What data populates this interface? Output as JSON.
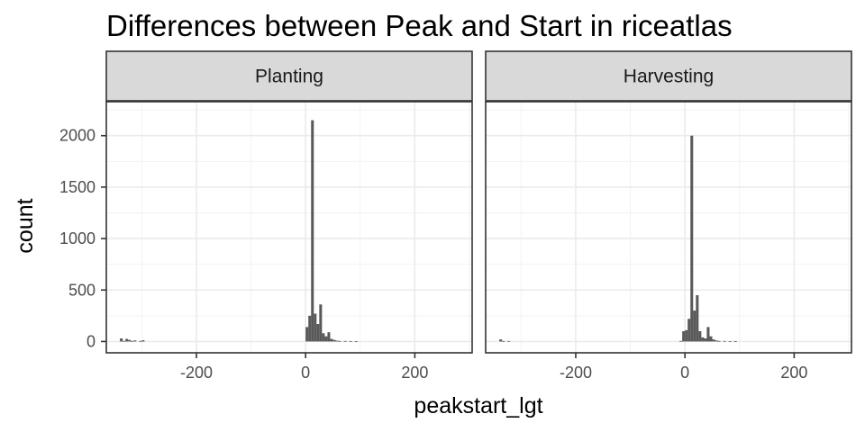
{
  "chart_data": {
    "type": "bar",
    "title": "Differences between Peak and Start in riceatlas",
    "xlabel": "peakstart_lgt",
    "ylabel": "count",
    "xlim": [
      -365,
      305
    ],
    "ylim": [
      -110,
      2330
    ],
    "x_ticks": [
      -200,
      0,
      200
    ],
    "x_tick_labels": [
      "-200",
      "0",
      "200"
    ],
    "y_ticks": [
      0,
      500,
      1000,
      1500,
      2000
    ],
    "y_tick_labels": [
      "0",
      "500",
      "1000",
      "1500",
      "2000"
    ],
    "grid": true,
    "bin_width": 5,
    "bar_color": "#595959",
    "panels": [
      {
        "label": "Planting",
        "bins": [
          {
            "x": -340,
            "count": 30
          },
          {
            "x": -335,
            "count": 5
          },
          {
            "x": -330,
            "count": 25
          },
          {
            "x": -325,
            "count": 15
          },
          {
            "x": -320,
            "count": 5
          },
          {
            "x": -315,
            "count": 10
          },
          {
            "x": -305,
            "count": 5
          },
          {
            "x": -300,
            "count": 12
          },
          {
            "x": 0,
            "count": 140
          },
          {
            "x": 5,
            "count": 250
          },
          {
            "x": 10,
            "count": 2150
          },
          {
            "x": 15,
            "count": 270
          },
          {
            "x": 20,
            "count": 170
          },
          {
            "x": 25,
            "count": 360
          },
          {
            "x": 30,
            "count": 80
          },
          {
            "x": 35,
            "count": 50
          },
          {
            "x": 40,
            "count": 90
          },
          {
            "x": 45,
            "count": 25
          },
          {
            "x": 50,
            "count": 15
          },
          {
            "x": 55,
            "count": 8
          },
          {
            "x": 60,
            "count": 5
          },
          {
            "x": 70,
            "count": 5
          },
          {
            "x": 80,
            "count": 3
          },
          {
            "x": 90,
            "count": 3
          }
        ]
      },
      {
        "label": "Harvesting",
        "bins": [
          {
            "x": -340,
            "count": 20
          },
          {
            "x": -335,
            "count": 5
          },
          {
            "x": -325,
            "count": 5
          },
          {
            "x": -10,
            "count": 5
          },
          {
            "x": -5,
            "count": 100
          },
          {
            "x": 0,
            "count": 110
          },
          {
            "x": 5,
            "count": 220
          },
          {
            "x": 10,
            "count": 2000
          },
          {
            "x": 15,
            "count": 300
          },
          {
            "x": 20,
            "count": 450
          },
          {
            "x": 25,
            "count": 100
          },
          {
            "x": 30,
            "count": 40
          },
          {
            "x": 35,
            "count": 30
          },
          {
            "x": 40,
            "count": 140
          },
          {
            "x": 45,
            "count": 50
          },
          {
            "x": 50,
            "count": 20
          },
          {
            "x": 55,
            "count": 10
          },
          {
            "x": 60,
            "count": 5
          },
          {
            "x": 70,
            "count": 5
          },
          {
            "x": 80,
            "count": 3
          },
          {
            "x": 90,
            "count": 3
          }
        ]
      }
    ]
  }
}
